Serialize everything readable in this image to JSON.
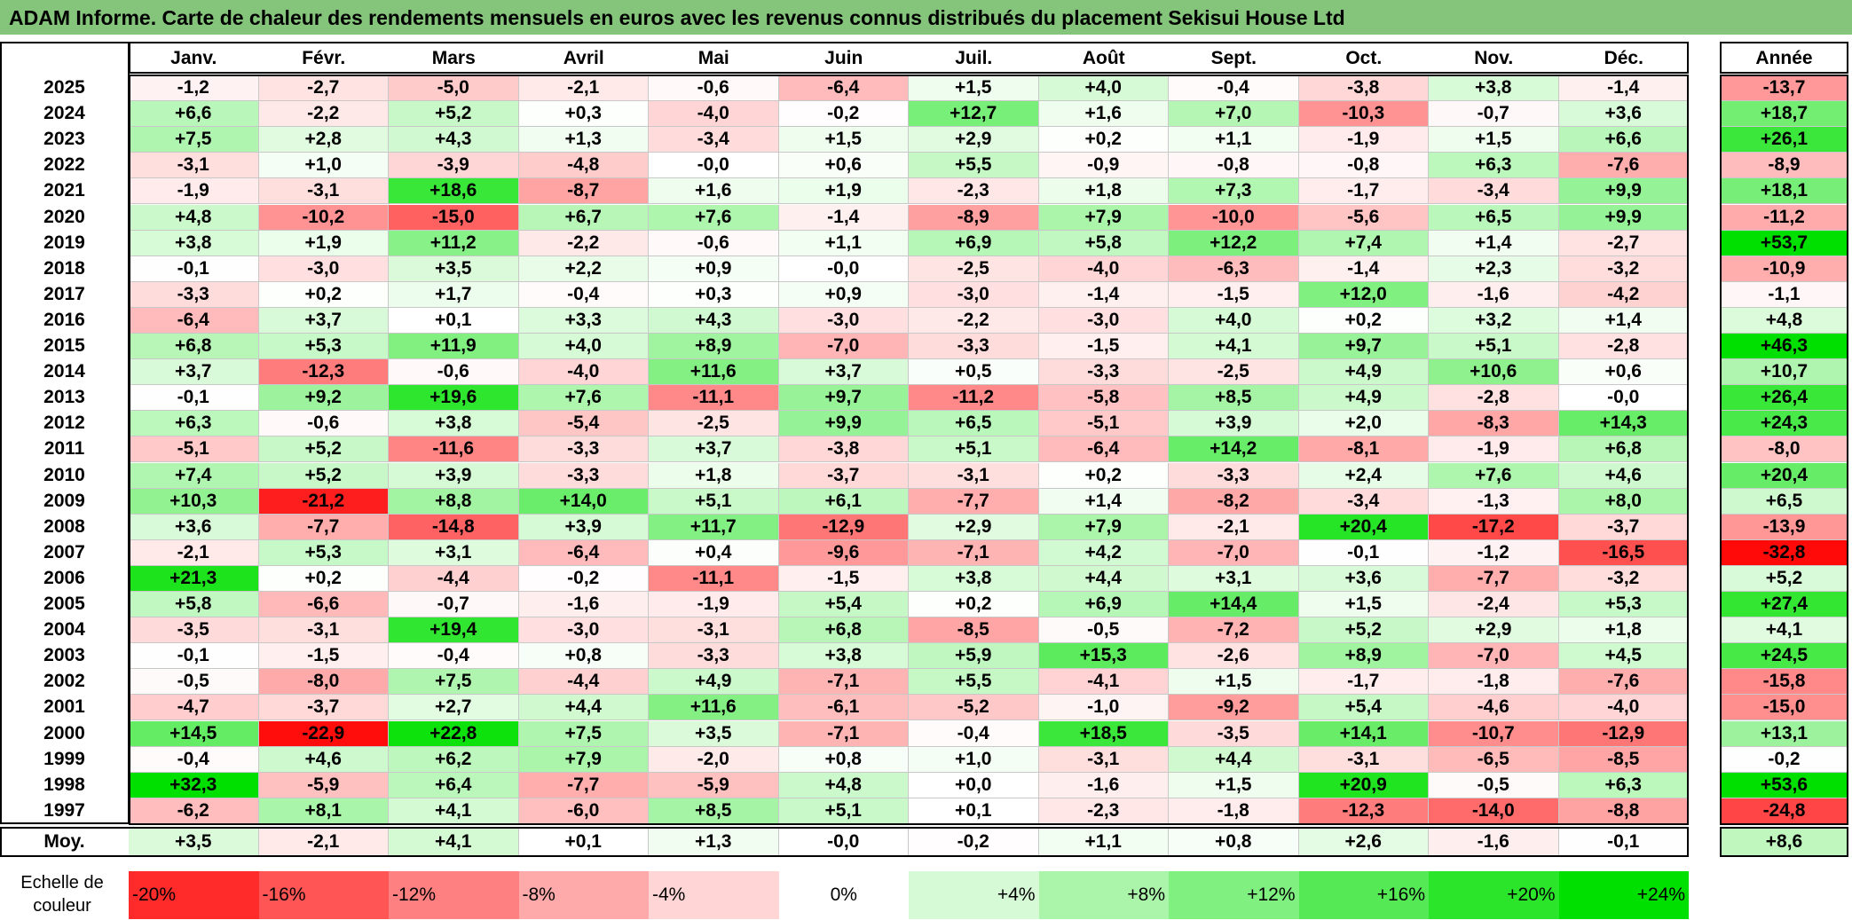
{
  "title": "ADAM Informe. Carte de chaleur des rendements mensuels en euros avec les revenus connus distribués du placement Sekisui House Ltd",
  "chart_data": {
    "type": "heatmap",
    "title": "ADAM Informe. Carte de chaleur des rendements mensuels en euros avec les revenus connus distribués du placement Sekisui House Ltd",
    "columns": [
      "Janv.",
      "Févr.",
      "Mars",
      "Avril",
      "Mai",
      "Juin",
      "Juil.",
      "Août",
      "Sept.",
      "Oct.",
      "Nov.",
      "Déc."
    ],
    "year_column_label": "Année",
    "rows": [
      {
        "year": "2025",
        "values": [
          -1.2,
          -2.7,
          -5.0,
          -2.1,
          -0.6,
          -6.4,
          1.5,
          4.0,
          -0.4,
          -3.8,
          3.8,
          -1.4
        ],
        "annual": -13.7
      },
      {
        "year": "2024",
        "values": [
          6.6,
          -2.2,
          5.2,
          0.3,
          -4.0,
          -0.2,
          12.7,
          1.6,
          7.0,
          -10.3,
          -0.7,
          3.6
        ],
        "annual": 18.7
      },
      {
        "year": "2023",
        "values": [
          7.5,
          2.8,
          4.3,
          1.3,
          -3.4,
          1.5,
          2.9,
          0.2,
          1.1,
          -1.9,
          1.5,
          6.6
        ],
        "annual": 26.1
      },
      {
        "year": "2022",
        "values": [
          -3.1,
          1.0,
          -3.9,
          -4.8,
          -0.0,
          0.6,
          5.5,
          -0.9,
          -0.8,
          -0.8,
          6.3,
          -7.6
        ],
        "annual": -8.9
      },
      {
        "year": "2021",
        "values": [
          -1.9,
          -3.1,
          18.6,
          -8.7,
          1.6,
          1.9,
          -2.3,
          1.8,
          7.3,
          -1.7,
          -3.4,
          9.9
        ],
        "annual": 18.1
      },
      {
        "year": "2020",
        "values": [
          4.8,
          -10.2,
          -15.0,
          6.7,
          7.6,
          -1.4,
          -8.9,
          7.9,
          -10.0,
          -5.6,
          6.5,
          9.9
        ],
        "annual": -11.2
      },
      {
        "year": "2019",
        "values": [
          3.8,
          1.9,
          11.2,
          -2.2,
          -0.6,
          1.1,
          6.9,
          5.8,
          12.2,
          7.4,
          1.4,
          -2.7
        ],
        "annual": 53.7
      },
      {
        "year": "2018",
        "values": [
          -0.1,
          -3.0,
          3.5,
          2.2,
          0.9,
          -0.0,
          -2.5,
          -4.0,
          -6.3,
          -1.4,
          2.3,
          -3.2
        ],
        "annual": -10.9
      },
      {
        "year": "2017",
        "values": [
          -3.3,
          0.2,
          1.7,
          -0.4,
          0.3,
          0.9,
          -3.0,
          -1.4,
          -1.5,
          12.0,
          -1.6,
          -4.2
        ],
        "annual": -1.1
      },
      {
        "year": "2016",
        "values": [
          -6.4,
          3.7,
          0.1,
          3.3,
          4.3,
          -3.0,
          -2.2,
          -3.0,
          4.0,
          0.2,
          3.2,
          1.4
        ],
        "annual": 4.8
      },
      {
        "year": "2015",
        "values": [
          6.8,
          5.3,
          11.9,
          4.0,
          8.9,
          -7.0,
          -3.3,
          -1.5,
          4.1,
          9.7,
          5.1,
          -2.8
        ],
        "annual": 46.3
      },
      {
        "year": "2014",
        "values": [
          3.7,
          -12.3,
          -0.6,
          -4.0,
          11.6,
          3.7,
          0.5,
          -3.3,
          -2.5,
          4.9,
          10.6,
          0.6
        ],
        "annual": 10.7
      },
      {
        "year": "2013",
        "values": [
          -0.1,
          9.2,
          19.6,
          7.6,
          -11.1,
          9.7,
          -11.2,
          -5.8,
          8.5,
          4.9,
          -2.8,
          -0.0
        ],
        "annual": 26.4
      },
      {
        "year": "2012",
        "values": [
          6.3,
          -0.6,
          3.8,
          -5.4,
          -2.5,
          9.9,
          6.5,
          -5.1,
          3.9,
          2.0,
          -8.3,
          14.3
        ],
        "annual": 24.3
      },
      {
        "year": "2011",
        "values": [
          -5.1,
          5.2,
          -11.6,
          -3.3,
          3.7,
          -3.8,
          5.1,
          -6.4,
          14.2,
          -8.1,
          -1.9,
          6.8
        ],
        "annual": -8.0
      },
      {
        "year": "2010",
        "values": [
          7.4,
          5.2,
          3.9,
          -3.3,
          1.8,
          -3.7,
          -3.1,
          0.2,
          -3.3,
          2.4,
          7.6,
          4.6
        ],
        "annual": 20.4
      },
      {
        "year": "2009",
        "values": [
          10.3,
          -21.2,
          8.8,
          14.0,
          5.1,
          6.1,
          -7.7,
          1.4,
          -8.2,
          -3.4,
          -1.3,
          8.0
        ],
        "annual": 6.5
      },
      {
        "year": "2008",
        "values": [
          3.6,
          -7.7,
          -14.8,
          3.9,
          11.7,
          -12.9,
          2.9,
          7.9,
          -2.1,
          20.4,
          -17.2,
          -3.7
        ],
        "annual": -13.9
      },
      {
        "year": "2007",
        "values": [
          -2.1,
          5.3,
          3.1,
          -6.4,
          0.4,
          -9.6,
          -7.1,
          4.2,
          -7.0,
          -0.1,
          -1.2,
          -16.5
        ],
        "annual": -32.8
      },
      {
        "year": "2006",
        "values": [
          21.3,
          0.2,
          -4.4,
          -0.2,
          -11.1,
          -1.5,
          3.8,
          4.4,
          3.1,
          3.6,
          -7.7,
          -3.2
        ],
        "annual": 5.2
      },
      {
        "year": "2005",
        "values": [
          5.8,
          -6.6,
          -0.7,
          -1.6,
          -1.9,
          5.4,
          0.2,
          6.9,
          14.4,
          1.5,
          -2.4,
          5.3
        ],
        "annual": 27.4
      },
      {
        "year": "2004",
        "values": [
          -3.5,
          -3.1,
          19.4,
          -3.0,
          -3.1,
          6.8,
          -8.5,
          -0.5,
          -7.2,
          5.2,
          2.9,
          1.8
        ],
        "annual": 4.1
      },
      {
        "year": "2003",
        "values": [
          -0.1,
          -1.5,
          -0.4,
          0.8,
          -3.3,
          3.8,
          5.9,
          15.3,
          -2.6,
          8.9,
          -7.0,
          4.5
        ],
        "annual": 24.5
      },
      {
        "year": "2002",
        "values": [
          -0.5,
          -8.0,
          7.5,
          -4.4,
          4.9,
          -7.1,
          5.5,
          -4.1,
          1.5,
          -1.7,
          -1.8,
          -7.6
        ],
        "annual": -15.8
      },
      {
        "year": "2001",
        "values": [
          -4.7,
          -3.7,
          2.7,
          4.4,
          11.6,
          -6.1,
          -5.2,
          -1.0,
          -9.2,
          5.4,
          -4.6,
          -4.0
        ],
        "annual": -15.0
      },
      {
        "year": "2000",
        "values": [
          14.5,
          -22.9,
          22.8,
          7.5,
          3.5,
          -7.1,
          -0.4,
          18.5,
          -3.5,
          14.1,
          -10.7,
          -12.9
        ],
        "annual": 13.1
      },
      {
        "year": "1999",
        "values": [
          -0.4,
          4.6,
          6.2,
          7.9,
          -2.0,
          0.8,
          1.0,
          -3.1,
          4.4,
          -3.1,
          -6.5,
          -8.5
        ],
        "annual": -0.2
      },
      {
        "year": "1998",
        "values": [
          32.3,
          -5.9,
          6.4,
          -7.7,
          -5.9,
          4.8,
          0.0,
          -1.6,
          1.5,
          20.9,
          -0.5,
          6.3
        ],
        "annual": 53.6
      },
      {
        "year": "1997",
        "values": [
          -6.2,
          8.1,
          4.1,
          -6.0,
          8.5,
          5.1,
          0.1,
          -2.3,
          -1.8,
          -12.3,
          -14.0,
          -8.8
        ],
        "annual": -24.8
      }
    ],
    "average": {
      "label": "Moy.",
      "values": [
        3.5,
        -2.1,
        4.1,
        0.1,
        1.3,
        -0.0,
        -0.2,
        1.1,
        0.8,
        2.6,
        -1.6,
        -0.1
      ],
      "annual": 8.6
    },
    "legend": {
      "label": "Echelle de couleur",
      "steps": [
        {
          "label": "-20%",
          "value": -20,
          "align": "left"
        },
        {
          "label": "-16%",
          "value": -16,
          "align": "left"
        },
        {
          "label": "-12%",
          "value": -12,
          "align": "left"
        },
        {
          "label": "-8%",
          "value": -8,
          "align": "left"
        },
        {
          "label": "-4%",
          "value": -4,
          "align": "left"
        },
        {
          "label": "0%",
          "value": 0,
          "align": "center"
        },
        {
          "label": "+4%",
          "value": 4,
          "align": "right"
        },
        {
          "label": "+8%",
          "value": 8,
          "align": "right"
        },
        {
          "label": "+12%",
          "value": 12,
          "align": "right"
        },
        {
          "label": "+16%",
          "value": 16,
          "align": "right"
        },
        {
          "label": "+20%",
          "value": 20,
          "align": "right"
        },
        {
          "label": "+24%",
          "value": 24,
          "align": "right"
        }
      ]
    },
    "colors": {
      "negative_max": "#ff0000",
      "zero": "#ffffff",
      "positive_max": "#00e000",
      "title_bg": "#85c47b"
    }
  }
}
